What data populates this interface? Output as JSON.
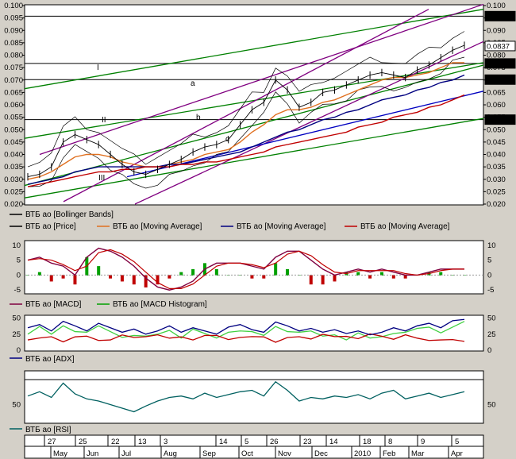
{
  "chart_data": [
    {
      "type": "line",
      "title": "",
      "ylim": [
        0.02,
        0.1
      ],
      "y_ticks": [
        "0.100",
        "0.095",
        "0.090",
        "0.085",
        "0.080",
        "0.075",
        "0.070",
        "0.065",
        "0.060",
        "0.055",
        "0.050",
        "0.045",
        "0.040",
        "0.035",
        "0.030",
        "0.025",
        "0.020"
      ],
      "price_boxes": [
        {
          "label": "0.09574",
          "value": 0.09574,
          "color": "#000000"
        },
        {
          "label": "0.0837",
          "value": 0.0837,
          "color": "#ffffff"
        },
        {
          "label": "0.07667",
          "value": 0.07667,
          "color": "#000000"
        },
        {
          "label": "0.07016",
          "value": 0.07016,
          "color": "#000000"
        },
        {
          "label": "0.05404",
          "value": 0.05404,
          "color": "#000000"
        }
      ],
      "hlines": [
        0.09574,
        0.07667,
        0.07016,
        0.05404
      ],
      "annotations": [
        "I",
        "II",
        "III",
        "a",
        "b",
        "c"
      ],
      "legend": [
        {
          "label": "ВТБ ао [Bollinger Bands]",
          "color": "#000000"
        },
        {
          "label": "ВТБ ао [Price]",
          "color": "#000000"
        },
        {
          "label": "ВТБ ао [Moving Average]",
          "color": "#e07020"
        },
        {
          "label": "ВТБ ао [Moving Average]",
          "color": "#000080"
        },
        {
          "label": "ВТБ ао [Moving Average]",
          "color": "#c00000"
        }
      ],
      "series": [
        {
          "name": "ВТБ ао [Price]",
          "values": [
            0.031,
            0.032,
            0.035,
            0.045,
            0.048,
            0.046,
            0.044,
            0.04,
            0.036,
            0.033,
            0.032,
            0.034,
            0.036,
            0.038,
            0.041,
            0.043,
            0.044,
            0.046,
            0.052,
            0.058,
            0.061,
            0.07,
            0.066,
            0.059,
            0.061,
            0.065,
            0.066,
            0.068,
            0.07,
            0.072,
            0.073,
            0.072,
            0.071,
            0.074,
            0.076,
            0.079,
            0.082,
            0.084
          ]
        },
        {
          "name": "ВТБ ао [Moving Average]",
          "values": [
            0.03,
            0.031,
            0.033,
            0.036,
            0.039,
            0.04,
            0.04,
            0.039,
            0.037,
            0.036,
            0.035,
            0.035,
            0.036,
            0.037,
            0.038,
            0.04,
            0.041,
            0.042,
            0.045,
            0.049,
            0.052,
            0.056,
            0.058,
            0.058,
            0.059,
            0.061,
            0.062,
            0.064,
            0.066,
            0.068,
            0.07,
            0.071,
            0.071,
            0.072,
            0.073,
            0.075,
            0.077,
            0.077
          ]
        },
        {
          "name": "ВТБ ао [Moving Average]",
          "values": [
            0.028,
            0.029,
            0.03,
            0.031,
            0.033,
            0.034,
            0.035,
            0.035,
            0.035,
            0.035,
            0.035,
            0.035,
            0.036,
            0.036,
            0.037,
            0.038,
            0.039,
            0.04,
            0.041,
            0.043,
            0.045,
            0.047,
            0.049,
            0.05,
            0.052,
            0.054,
            0.055,
            0.057,
            0.058,
            0.06,
            0.062,
            0.063,
            0.064,
            0.066,
            0.067,
            0.069,
            0.07,
            0.072
          ]
        },
        {
          "name": "ВТБ ао [Moving Average]",
          "values": [
            0.027,
            0.028,
            0.029,
            0.03,
            0.031,
            0.032,
            0.033,
            0.033,
            0.034,
            0.034,
            0.035,
            0.035,
            0.035,
            0.036,
            0.036,
            0.037,
            0.037,
            0.038,
            0.039,
            0.04,
            0.041,
            0.043,
            0.044,
            0.045,
            0.046,
            0.047,
            0.048,
            0.049,
            0.051,
            0.052,
            0.053,
            0.055,
            0.056,
            0.057,
            0.059,
            0.06,
            0.062,
            0.064
          ]
        }
      ]
    },
    {
      "type": "line",
      "ylim": [
        -6,
        11
      ],
      "y_ticks": [
        "10",
        "5",
        "0",
        "-5"
      ],
      "legend": [
        {
          "label": "ВТБ ао [MACD]",
          "color": "#800040"
        },
        {
          "label": "ВТБ ао [MACD Histogram]",
          "color": "#00a000"
        }
      ],
      "series": [
        {
          "name": "ВТБ ао [MACD]",
          "values": [
            5,
            6,
            4,
            3,
            0,
            6,
            9,
            8,
            6,
            3,
            -1,
            -4,
            -5,
            -4,
            -2,
            2,
            4,
            4,
            4,
            3,
            2,
            6,
            8,
            8,
            5,
            2,
            0,
            1,
            2,
            1,
            2,
            1,
            0,
            0,
            1,
            2,
            2,
            2
          ]
        }
      ]
    },
    {
      "type": "line",
      "ylim": [
        0,
        52
      ],
      "y_ticks": [
        "50",
        "25",
        "0"
      ],
      "legend": [
        {
          "label": "ВТБ ао [ADX]",
          "color": "#000080"
        }
      ],
      "series": [
        {
          "name": "ВТБ ао [ADX]",
          "values": [
            35,
            40,
            30,
            45,
            38,
            30,
            42,
            35,
            28,
            33,
            25,
            30,
            38,
            28,
            35,
            30,
            25,
            36,
            40,
            32,
            28,
            44,
            38,
            30,
            34,
            28,
            32,
            26,
            30,
            24,
            28,
            35,
            30,
            38,
            42,
            35,
            46,
            48
          ]
        }
      ]
    },
    {
      "type": "line",
      "ylim": [
        25,
        95
      ],
      "y_ticks": [
        "50"
      ],
      "legend": [
        {
          "label": "ВТБ ао [RSI]",
          "color": "#006060"
        }
      ],
      "series": [
        {
          "name": "ВТБ ао [RSI]",
          "values": [
            62,
            68,
            60,
            80,
            65,
            58,
            55,
            50,
            45,
            40,
            48,
            55,
            60,
            62,
            58,
            66,
            60,
            64,
            68,
            70,
            62,
            82,
            70,
            55,
            60,
            58,
            62,
            60,
            64,
            58,
            66,
            70,
            58,
            62,
            66,
            60,
            64,
            68
          ]
        }
      ]
    }
  ],
  "x_axis": {
    "days": [
      "27",
      "25",
      "22",
      "13",
      "3",
      "14",
      "5",
      "26",
      "23",
      "14",
      "18",
      "8",
      "9",
      "5"
    ],
    "months": [
      "May",
      "Jun",
      "Jul",
      "Aug",
      "Sep",
      "Oct",
      "Nov",
      "Dec",
      "2010",
      "Feb",
      "Mar",
      "Apr"
    ]
  }
}
